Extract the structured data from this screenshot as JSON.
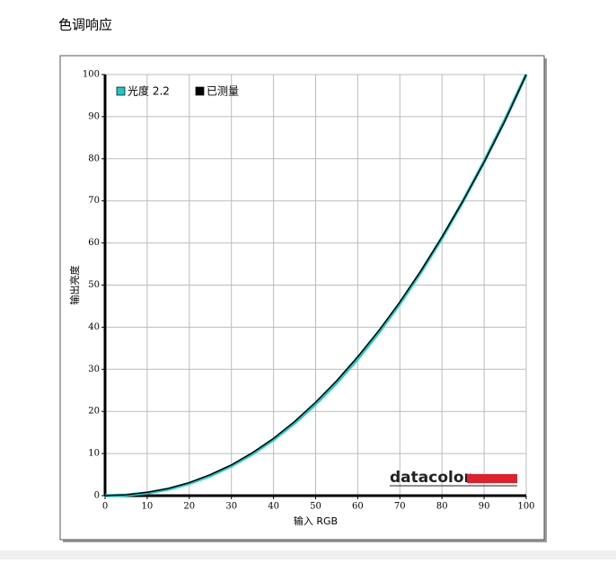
{
  "header": {
    "title": "色调响应"
  },
  "chart_data": {
    "type": "line",
    "x": [
      0,
      5,
      10,
      15,
      20,
      25,
      30,
      35,
      40,
      45,
      50,
      55,
      60,
      65,
      70,
      75,
      80,
      85,
      90,
      95,
      100
    ],
    "series": [
      {
        "name": "光度 2.2",
        "color": "#1ec8c8",
        "values": [
          0,
          0.14,
          0.63,
          1.54,
          2.9,
          4.74,
          7.07,
          9.93,
          13.32,
          17.26,
          21.76,
          26.84,
          32.5,
          38.76,
          45.63,
          53.11,
          61.21,
          69.94,
          79.31,
          89.33,
          100
        ]
      },
      {
        "name": "已测量",
        "color": "#000000",
        "values": [
          0,
          0.2,
          0.8,
          1.7,
          3.1,
          5.0,
          7.3,
          10.2,
          13.6,
          17.6,
          22.2,
          27.3,
          33.0,
          39.2,
          46.0,
          53.4,
          61.4,
          70.0,
          79.2,
          89.1,
          100
        ]
      }
    ],
    "xlabel": "输入 RGB",
    "ylabel": "输出亮度",
    "xlim": [
      0,
      100
    ],
    "ylim": [
      0,
      100
    ],
    "xticks": [
      0,
      10,
      20,
      30,
      40,
      50,
      60,
      70,
      80,
      90,
      100
    ],
    "yticks": [
      0,
      10,
      20,
      30,
      40,
      50,
      60,
      70,
      80,
      90,
      100
    ],
    "grid": true,
    "legend": "top-left",
    "logo": "datacolor"
  }
}
